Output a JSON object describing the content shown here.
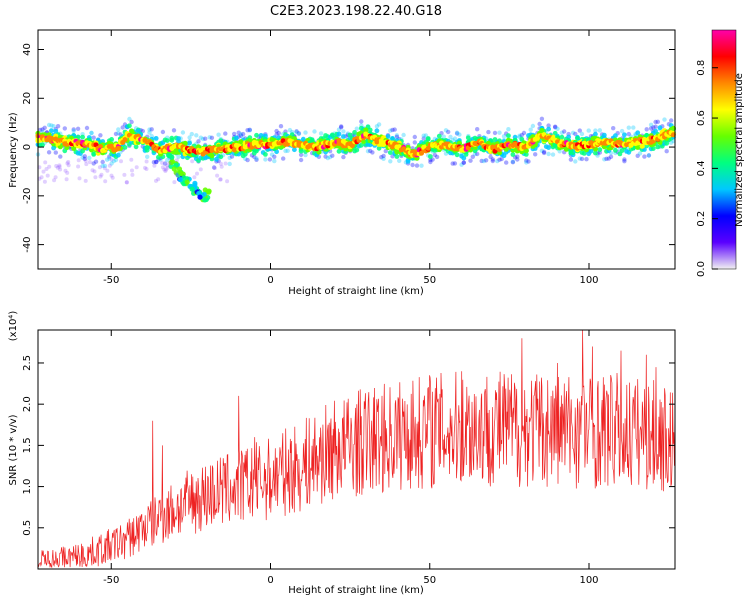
{
  "title": "C2E3.2023.198.22.40.G18",
  "chart_data": [
    {
      "type": "heatmap",
      "xlabel": "Height of straight line (km)",
      "ylabel": "Frequency (Hz)",
      "xlim": [
        -73,
        127
      ],
      "ylim": [
        -50,
        48
      ],
      "xticks": [
        -50,
        0,
        50,
        100
      ],
      "yticks": [
        -40,
        -20,
        0,
        20,
        40
      ],
      "colorbar": {
        "label": "Normalized spectral amplitude",
        "range": [
          0.0,
          0.95
        ],
        "ticks": [
          0.0,
          0.2,
          0.4,
          0.6,
          0.8
        ],
        "colors": [
          "#f2f2f2",
          "#5a00ff",
          "#0000ff",
          "#00c8ff",
          "#00ff80",
          "#66ff00",
          "#ffff00",
          "#ff8800",
          "#ff0000",
          "#ff00aa"
        ]
      },
      "ridge": {
        "x": [
          -73,
          -65,
          -58,
          -52,
          -48,
          -45,
          -40,
          -35,
          -30,
          -25,
          -22,
          -15,
          -10,
          -5,
          0,
          5,
          10,
          15,
          20,
          25,
          30,
          35,
          40,
          45,
          50,
          55,
          60,
          65,
          70,
          75,
          80,
          85,
          90,
          95,
          100,
          105,
          110,
          115,
          120,
          127
        ],
        "y": [
          4,
          2,
          1,
          -1,
          0,
          5,
          3,
          -1,
          0,
          -1,
          -2,
          -1,
          0,
          1,
          1,
          2,
          1,
          0,
          2,
          1,
          5,
          2,
          0,
          -3,
          0,
          1,
          -1,
          2,
          -1,
          1,
          0,
          5,
          2,
          0,
          1,
          2,
          1,
          2,
          3,
          6
        ]
      },
      "branch": {
        "x": [
          -32,
          -30,
          -28,
          -26,
          -24,
          -22,
          -20
        ],
        "y": [
          -5,
          -8,
          -12,
          -15,
          -17,
          -19,
          -20
        ]
      }
    },
    {
      "type": "line",
      "xlabel": "Height of straight line (km)",
      "ylabel": "SNR (10 * v/v)",
      "y_multiplier": "(x10⁴)",
      "xlim": [
        -73,
        127
      ],
      "ylim": [
        0,
        2.9
      ],
      "xticks": [
        -50,
        0,
        50,
        100
      ],
      "yticks": [
        0.5,
        1.0,
        1.5,
        2.0,
        2.5
      ],
      "series_color": "#ee2222",
      "trend": {
        "x": [
          -73,
          -60,
          -50,
          -45,
          -40,
          -35,
          -30,
          -25,
          -20,
          -15,
          -10,
          -5,
          0,
          5,
          10,
          15,
          20,
          30,
          40,
          50,
          60,
          70,
          80,
          90,
          100,
          110,
          120,
          127
        ],
        "y": [
          0.08,
          0.15,
          0.28,
          0.36,
          0.5,
          0.62,
          0.72,
          0.82,
          0.9,
          0.95,
          1.0,
          1.05,
          1.1,
          1.18,
          1.25,
          1.35,
          1.45,
          1.55,
          1.62,
          1.68,
          1.7,
          1.72,
          1.7,
          1.7,
          1.68,
          1.68,
          1.62,
          1.55
        ]
      },
      "spikes": {
        "x": [
          -37,
          -34,
          -10,
          -5,
          10,
          35,
          50,
          60,
          79,
          90,
          98,
          101,
          110,
          118,
          121
        ],
        "y": [
          1.8,
          1.5,
          2.1,
          1.6,
          1.2,
          2.1,
          2.35,
          2.4,
          2.8,
          2.5,
          2.9,
          2.7,
          2.65,
          2.6,
          2.45
        ]
      }
    }
  ]
}
